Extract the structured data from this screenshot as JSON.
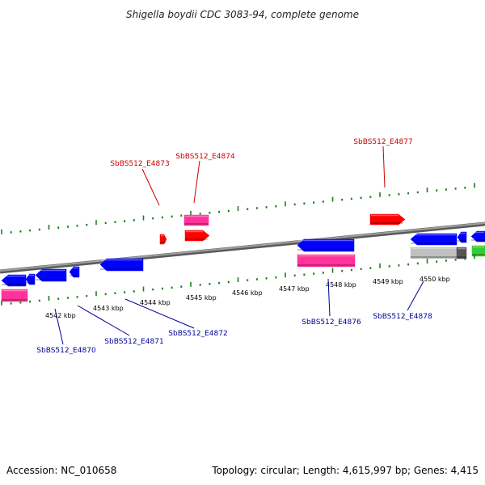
{
  "title": "Shigella boydii CDC 3083-94, complete genome",
  "footer": {
    "accession": "Accession: NC_010658",
    "summary": "Topology: circular; Length: 4,615,997 bp; Genes: 4,415"
  },
  "scale_ticks": [
    "4542 kbp",
    "4543 kbp",
    "4544 kbp",
    "4545 kbp",
    "4546 kbp",
    "4547 kbp",
    "4548 kbp",
    "4549 kbp",
    "4550 kbp"
  ],
  "gene_labels": {
    "top": [
      "SbBS512_E4873",
      "SbBS512_E4874",
      "SbBS512_E4877"
    ],
    "bottom": [
      "SbBS512_E4870",
      "SbBS512_E4871",
      "SbBS512_E4872",
      "SbBS512_E4876",
      "SbBS512_E4878"
    ]
  },
  "colors": {
    "forward_cds": "#ff0000",
    "reverse_cds": "#0000ff",
    "rna": "#ff3399",
    "backbone": "#808080",
    "tick": "#1a7f1a",
    "pseudogene": "#c0c0c0",
    "other_gene": "#33cc33",
    "label_forward": "#cc0000",
    "label_reverse": "#000099"
  }
}
